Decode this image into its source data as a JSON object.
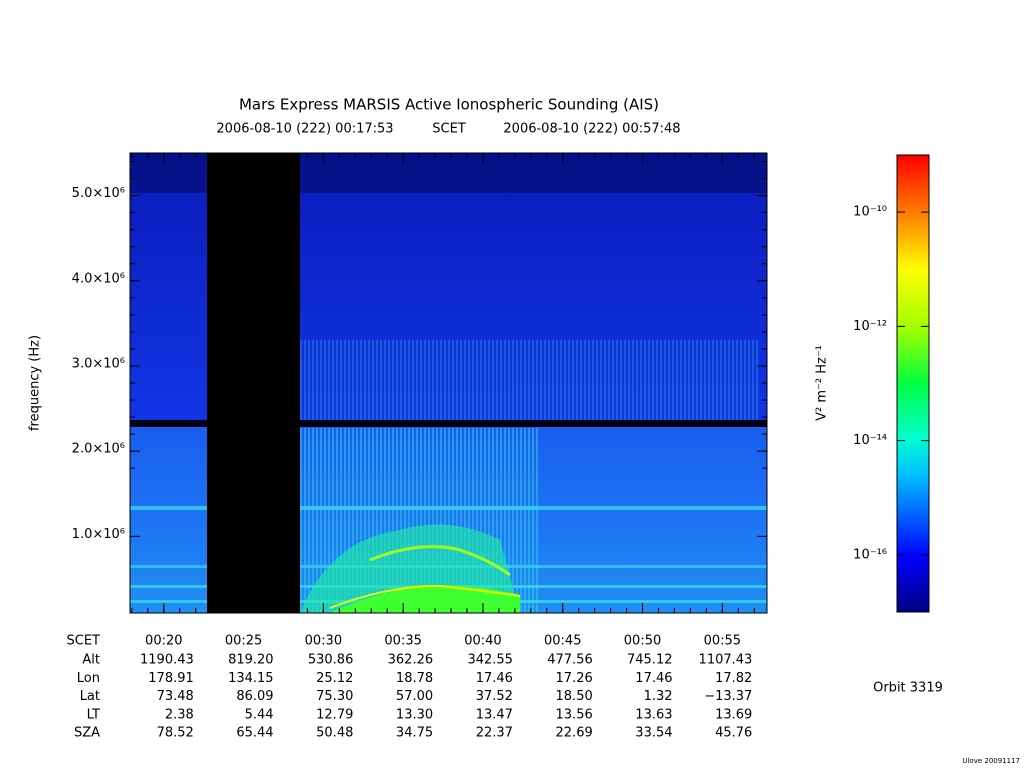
{
  "chart_data": {
    "type": "spectrogram",
    "title": "Mars Express MARSIS Active Ionospheric Sounding (AIS)",
    "start_time": "2006-08-10 (222) 00:17:53",
    "time_system": "SCET",
    "end_time": "2006-08-10 (222) 00:57:48",
    "y_label": "frequency (Hz)",
    "xlim": [
      17.883,
      57.8
    ],
    "xticks": [
      {
        "value": 20,
        "label": "00:20"
      },
      {
        "value": 25,
        "label": "00:25"
      },
      {
        "value": 30,
        "label": "00:30"
      },
      {
        "value": 35,
        "label": "00:35"
      },
      {
        "value": 40,
        "label": "00:40"
      },
      {
        "value": 45,
        "label": "00:45"
      },
      {
        "value": 50,
        "label": "00:50"
      },
      {
        "value": 55,
        "label": "00:55"
      }
    ],
    "ylim": [
      100000,
      5500000
    ],
    "yticks": [
      {
        "value": 1000000,
        "label": "1.0×10⁶"
      },
      {
        "value": 2000000,
        "label": "2.0×10⁶"
      },
      {
        "value": 3000000,
        "label": "3.0×10⁶"
      },
      {
        "value": 4000000,
        "label": "4.0×10⁶"
      },
      {
        "value": 5000000,
        "label": "5.0×10⁶"
      }
    ],
    "colorbar": {
      "label": "V² m⁻² Hz⁻¹",
      "log": true,
      "clim": [
        1e-17,
        1e-09
      ],
      "ticks": [
        {
          "value": 1e-10,
          "label": "10⁻¹⁰"
        },
        {
          "value": 1e-12,
          "label": "10⁻¹²"
        },
        {
          "value": 1e-14,
          "label": "10⁻¹⁴"
        },
        {
          "value": 1e-16,
          "label": "10⁻¹⁶"
        }
      ]
    },
    "ephemeris": [
      {
        "label": "Alt",
        "values": [
          "1190.43",
          "819.20",
          "530.86",
          "362.26",
          "342.55",
          "477.56",
          "745.12",
          "1107.43"
        ]
      },
      {
        "label": "Lon",
        "values": [
          "178.91",
          "134.15",
          "25.12",
          "18.78",
          "17.46",
          "17.26",
          "17.46",
          "17.82"
        ]
      },
      {
        "label": "Lat",
        "values": [
          "73.48",
          "86.09",
          "75.30",
          "57.00",
          "37.52",
          "18.50",
          "1.32",
          "−13.37"
        ]
      },
      {
        "label": "LT",
        "values": [
          "2.38",
          "5.44",
          "12.79",
          "13.30",
          "13.47",
          "13.56",
          "13.63",
          "13.69"
        ]
      },
      {
        "label": "SZA",
        "values": [
          "78.52",
          "65.44",
          "50.48",
          "34.75",
          "22.37",
          "22.69",
          "33.54",
          "45.76"
        ]
      }
    ],
    "orbit": "Orbit 3319",
    "credit": "Ulove 20091117"
  }
}
